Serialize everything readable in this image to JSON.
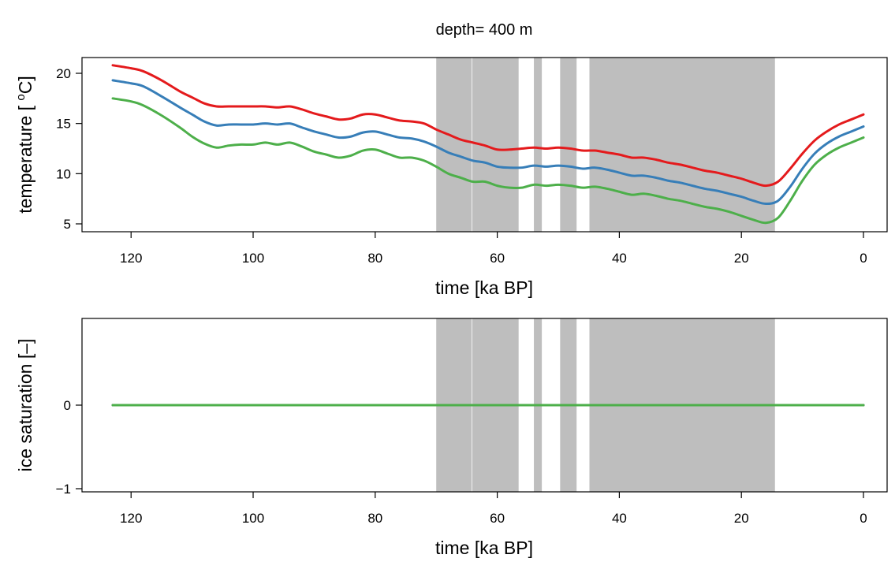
{
  "figure_title": "depth= 400 m",
  "colors": {
    "shading": "#bebebe",
    "series": [
      "#e41a1c",
      "#377eb8",
      "#4daf4a"
    ]
  },
  "chart_data": [
    {
      "type": "line",
      "title": "",
      "xlabel": "time [ka BP]",
      "ylabel_main": "temperature [ ",
      "ylabel_sup": "o",
      "ylabel_end": "C]",
      "xlim": [
        123,
        0
      ],
      "ylim": [
        4,
        21.5
      ],
      "x_reversed": true,
      "xticks": [
        120,
        100,
        80,
        60,
        40,
        20,
        0
      ],
      "yticks": [
        5,
        10,
        15,
        20
      ],
      "grid": false,
      "shaded_intervals": [
        [
          70,
          64.2
        ],
        [
          64.1,
          56.5
        ],
        [
          54,
          52.7
        ],
        [
          49.7,
          47
        ],
        [
          44.9,
          14.5
        ]
      ],
      "series": [
        {
          "color": "#e41a1c",
          "x": [
            123,
            120,
            118,
            115,
            112,
            110,
            108,
            106,
            104,
            102,
            100,
            98,
            96,
            94,
            92,
            90,
            88,
            86,
            84,
            82,
            80,
            78,
            76,
            74,
            72,
            70,
            68,
            66,
            64,
            62,
            60,
            58,
            56,
            54,
            52,
            50,
            48,
            46,
            44,
            42,
            40,
            38,
            36,
            34,
            32,
            30,
            28,
            26,
            24,
            22,
            20,
            18,
            16,
            14,
            12,
            10,
            8,
            6,
            4,
            2,
            0
          ],
          "values": [
            20.8,
            20.5,
            20.2,
            19.3,
            18.2,
            17.6,
            17.0,
            16.7,
            16.7,
            16.7,
            16.7,
            16.7,
            16.6,
            16.7,
            16.4,
            16.0,
            15.7,
            15.4,
            15.5,
            15.9,
            15.9,
            15.6,
            15.3,
            15.2,
            15.0,
            14.4,
            13.9,
            13.4,
            13.1,
            12.8,
            12.4,
            12.4,
            12.5,
            12.6,
            12.5,
            12.6,
            12.5,
            12.3,
            12.3,
            12.1,
            11.9,
            11.6,
            11.6,
            11.4,
            11.1,
            10.9,
            10.6,
            10.3,
            10.1,
            9.8,
            9.5,
            9.1,
            8.8,
            9.2,
            10.5,
            12.0,
            13.3,
            14.2,
            14.9,
            15.4,
            15.9
          ]
        },
        {
          "color": "#377eb8",
          "x": [
            123,
            120,
            118,
            115,
            112,
            110,
            108,
            106,
            104,
            102,
            100,
            98,
            96,
            94,
            92,
            90,
            88,
            86,
            84,
            82,
            80,
            78,
            76,
            74,
            72,
            70,
            68,
            66,
            64,
            62,
            60,
            58,
            56,
            54,
            52,
            50,
            48,
            46,
            44,
            42,
            40,
            38,
            36,
            34,
            32,
            30,
            28,
            26,
            24,
            22,
            20,
            18,
            16,
            14,
            12,
            10,
            8,
            6,
            4,
            2,
            0
          ],
          "values": [
            19.3,
            19.0,
            18.7,
            17.7,
            16.6,
            15.9,
            15.2,
            14.8,
            14.9,
            14.9,
            14.9,
            15.0,
            14.9,
            15.0,
            14.6,
            14.2,
            13.9,
            13.6,
            13.7,
            14.1,
            14.2,
            13.9,
            13.6,
            13.5,
            13.2,
            12.7,
            12.1,
            11.7,
            11.3,
            11.1,
            10.7,
            10.6,
            10.6,
            10.8,
            10.7,
            10.8,
            10.7,
            10.5,
            10.6,
            10.4,
            10.1,
            9.8,
            9.8,
            9.6,
            9.3,
            9.1,
            8.8,
            8.5,
            8.3,
            8.0,
            7.7,
            7.3,
            7.0,
            7.3,
            8.7,
            10.5,
            12.0,
            13.0,
            13.7,
            14.2,
            14.7
          ]
        },
        {
          "color": "#4daf4a",
          "x": [
            123,
            120,
            118,
            115,
            112,
            110,
            108,
            106,
            104,
            102,
            100,
            98,
            96,
            94,
            92,
            90,
            88,
            86,
            84,
            82,
            80,
            78,
            76,
            74,
            72,
            70,
            68,
            66,
            64,
            62,
            60,
            58,
            56,
            54,
            52,
            50,
            48,
            46,
            44,
            42,
            40,
            38,
            36,
            34,
            32,
            30,
            28,
            26,
            24,
            22,
            20,
            18,
            16,
            14,
            12,
            10,
            8,
            6,
            4,
            2,
            0
          ],
          "values": [
            17.5,
            17.2,
            16.8,
            15.8,
            14.6,
            13.7,
            13.0,
            12.6,
            12.8,
            12.9,
            12.9,
            13.1,
            12.9,
            13.1,
            12.7,
            12.2,
            11.9,
            11.6,
            11.8,
            12.3,
            12.4,
            12.0,
            11.6,
            11.6,
            11.3,
            10.7,
            10.0,
            9.6,
            9.2,
            9.2,
            8.8,
            8.6,
            8.6,
            8.9,
            8.8,
            8.9,
            8.8,
            8.6,
            8.7,
            8.5,
            8.2,
            7.9,
            8.0,
            7.8,
            7.5,
            7.3,
            7.0,
            6.7,
            6.5,
            6.2,
            5.8,
            5.4,
            5.1,
            5.6,
            7.3,
            9.3,
            10.9,
            11.9,
            12.6,
            13.1,
            13.6
          ]
        }
      ]
    },
    {
      "type": "line",
      "title": "",
      "xlabel": "time [ka BP]",
      "ylabel": "ice saturation [–]",
      "xlim": [
        123,
        0
      ],
      "ylim": [
        -1.05,
        1.05
      ],
      "x_reversed": true,
      "xticks": [
        120,
        100,
        80,
        60,
        40,
        20,
        0
      ],
      "yticks": [
        0,
        -1
      ],
      "ytick_labels": [
        "0",
        "−1"
      ],
      "grid": false,
      "shaded_intervals": [
        [
          70,
          64.2
        ],
        [
          64.1,
          56.5
        ],
        [
          54,
          52.7
        ],
        [
          49.7,
          47
        ],
        [
          44.9,
          14.5
        ]
      ],
      "series": [
        {
          "color": "#e41a1c",
          "x": [
            123,
            0
          ],
          "values": [
            0,
            0
          ]
        },
        {
          "color": "#377eb8",
          "x": [
            123,
            0
          ],
          "values": [
            0,
            0
          ]
        },
        {
          "color": "#4daf4a",
          "x": [
            123,
            0
          ],
          "values": [
            0,
            0
          ]
        }
      ]
    }
  ]
}
